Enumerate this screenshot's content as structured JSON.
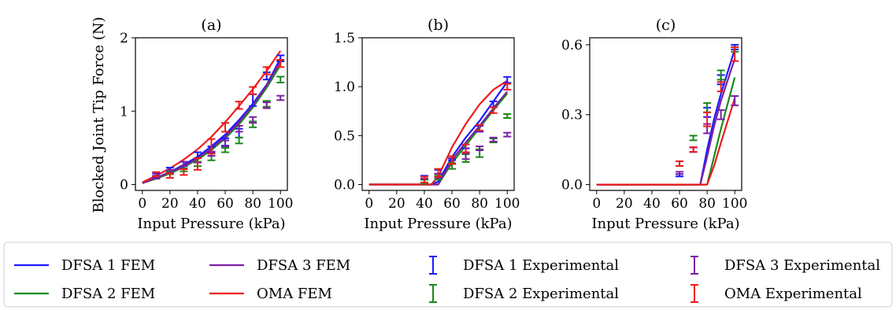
{
  "figure": {
    "ylabel": "Blocked Joint  Tip Force (N)"
  },
  "legend": [
    {
      "label": "DFSA 1 FEM",
      "kind": "line",
      "color": "#1a1aff"
    },
    {
      "label": "DFSA 3 FEM",
      "kind": "line",
      "color": "#7b1fa2"
    },
    {
      "label": "DFSA 1 Experimental",
      "kind": "errorbar",
      "color": "#1a1aff"
    },
    {
      "label": "DFSA 3 Experimental",
      "kind": "errorbar",
      "color": "#7b1fa2"
    },
    {
      "label": "DFSA 2 FEM",
      "kind": "line",
      "color": "#1a8a1a"
    },
    {
      "label": "OMA FEM",
      "kind": "line",
      "color": "#ee1c1c"
    },
    {
      "label": "DFSA 2 Experimental",
      "kind": "errorbar",
      "color": "#1a8a1a"
    },
    {
      "label": "OMA Experimental",
      "kind": "errorbar",
      "color": "#ee1c1c"
    }
  ],
  "chart_data": [
    {
      "type": "line",
      "title": "(a)",
      "xlabel": "Input Pressure (kPa)",
      "ylabel": "Blocked Joint  Tip Force (N)",
      "xlim": [
        -5,
        105
      ],
      "ylim": [
        -0.08,
        2.0
      ],
      "xticks": [
        0,
        20,
        40,
        60,
        80,
        100
      ],
      "yticks": [
        0,
        1,
        2
      ],
      "grid": false,
      "x": [
        0,
        10,
        20,
        30,
        40,
        50,
        60,
        70,
        80,
        90,
        100
      ],
      "series": [
        {
          "name": "DFSA 1 FEM",
          "kind": "fem",
          "color": "#1a1aff",
          "values": [
            0.02,
            0.09,
            0.17,
            0.27,
            0.38,
            0.52,
            0.68,
            0.88,
            1.1,
            1.36,
            1.72
          ]
        },
        {
          "name": "DFSA 2 FEM",
          "kind": "fem",
          "color": "#1a8a1a",
          "values": [
            0.02,
            0.08,
            0.15,
            0.24,
            0.34,
            0.47,
            0.63,
            0.82,
            1.05,
            1.32,
            1.63
          ]
        },
        {
          "name": "DFSA 3 FEM",
          "kind": "fem",
          "color": "#7b1fa2",
          "values": [
            0.02,
            0.09,
            0.16,
            0.25,
            0.36,
            0.49,
            0.65,
            0.85,
            1.08,
            1.35,
            1.68
          ]
        },
        {
          "name": "OMA FEM",
          "kind": "fem",
          "color": "#ee1c1c",
          "values": [
            0.03,
            0.12,
            0.22,
            0.34,
            0.48,
            0.65,
            0.85,
            1.07,
            1.3,
            1.55,
            1.82
          ]
        },
        {
          "name": "DFSA 1 Experimental",
          "kind": "exp",
          "color": "#1a1aff",
          "x": [
            10,
            20,
            30,
            40,
            50,
            60,
            70,
            80,
            90,
            100
          ],
          "values": [
            0.12,
            0.2,
            0.28,
            0.4,
            0.48,
            0.58,
            0.7,
            1.15,
            1.48,
            1.72
          ],
          "errors": [
            0.03,
            0.03,
            0.03,
            0.04,
            0.04,
            0.05,
            0.06,
            0.08,
            0.05,
            0.04
          ]
        },
        {
          "name": "DFSA 2 Experimental",
          "kind": "exp",
          "color": "#1a8a1a",
          "x": [
            10,
            20,
            30,
            40,
            50,
            60,
            70,
            80,
            90,
            100
          ],
          "values": [
            0.1,
            0.16,
            0.2,
            0.28,
            0.36,
            0.47,
            0.6,
            0.82,
            1.1,
            1.43
          ],
          "errors": [
            0.02,
            0.02,
            0.02,
            0.03,
            0.03,
            0.03,
            0.04,
            0.04,
            0.04,
            0.04
          ]
        },
        {
          "name": "DFSA 3 Experimental",
          "kind": "exp",
          "color": "#7b1fa2",
          "x": [
            10,
            20,
            30,
            40,
            50,
            60,
            70,
            80,
            90,
            100
          ],
          "values": [
            0.1,
            0.18,
            0.28,
            0.33,
            0.42,
            0.56,
            0.76,
            0.88,
            1.08,
            1.18
          ],
          "errors": [
            0.02,
            0.02,
            0.03,
            0.03,
            0.03,
            0.04,
            0.04,
            0.04,
            0.04,
            0.03
          ]
        },
        {
          "name": "OMA Experimental",
          "kind": "exp",
          "color": "#ee1c1c",
          "x": [
            10,
            20,
            30,
            40,
            50,
            60,
            70,
            80,
            90,
            100
          ],
          "values": [
            0.14,
            0.12,
            0.17,
            0.28,
            0.52,
            0.78,
            1.08,
            1.28,
            1.55,
            1.65
          ],
          "errors": [
            0.03,
            0.03,
            0.04,
            0.08,
            0.1,
            0.06,
            0.05,
            0.05,
            0.05,
            0.05
          ]
        }
      ]
    },
    {
      "type": "line",
      "title": "(b)",
      "xlabel": "Input Pressure (kPa)",
      "ylabel": "",
      "xlim": [
        -5,
        105
      ],
      "ylim": [
        -0.06,
        1.5
      ],
      "xticks": [
        0,
        20,
        40,
        60,
        80,
        100
      ],
      "yticks": [
        0.0,
        0.5,
        1.0,
        1.5
      ],
      "yticklabels": [
        "0.0",
        "0.5",
        "1.0",
        "1.5"
      ],
      "grid": false,
      "x": [
        0,
        10,
        20,
        30,
        40,
        45,
        50,
        60,
        70,
        80,
        90,
        100
      ],
      "series": [
        {
          "name": "DFSA 1 FEM",
          "kind": "fem",
          "color": "#1a1aff",
          "values": [
            0,
            0,
            0,
            0,
            0,
            0,
            0.03,
            0.28,
            0.48,
            0.65,
            0.85,
            1.05
          ]
        },
        {
          "name": "DFSA 2 FEM",
          "kind": "fem",
          "color": "#1a8a1a",
          "values": [
            0,
            0,
            0,
            0,
            0,
            0,
            0,
            0.22,
            0.4,
            0.58,
            0.76,
            0.93
          ]
        },
        {
          "name": "DFSA 3 FEM",
          "kind": "fem",
          "color": "#7b1fa2",
          "values": [
            0,
            0,
            0,
            0,
            0,
            0,
            0,
            0.25,
            0.43,
            0.6,
            0.78,
            0.95
          ]
        },
        {
          "name": "OMA FEM",
          "kind": "fem",
          "color": "#ee1c1c",
          "values": [
            0,
            0,
            0,
            0,
            0,
            0,
            0.08,
            0.38,
            0.62,
            0.82,
            0.97,
            1.06
          ]
        },
        {
          "name": "DFSA 1 Experimental",
          "kind": "exp",
          "color": "#1a1aff",
          "x": [
            40,
            50,
            60,
            70,
            80,
            90,
            100
          ],
          "values": [
            0.07,
            0.13,
            0.27,
            0.35,
            0.57,
            0.82,
            1.07
          ],
          "errors": [
            0.02,
            0.02,
            0.02,
            0.02,
            0.03,
            0.03,
            0.03
          ]
        },
        {
          "name": "DFSA 2 Experimental",
          "kind": "exp",
          "color": "#1a8a1a",
          "x": [
            40,
            50,
            60,
            70,
            80,
            90,
            100
          ],
          "values": [
            0.03,
            0.07,
            0.19,
            0.27,
            0.32,
            0.45,
            0.7
          ],
          "errors": [
            0.02,
            0.02,
            0.03,
            0.04,
            0.04,
            0.02,
            0.02
          ]
        },
        {
          "name": "DFSA 3 Experimental",
          "kind": "exp",
          "color": "#7b1fa2",
          "x": [
            40,
            50,
            60,
            70,
            80,
            90,
            100
          ],
          "values": [
            0.04,
            0.09,
            0.24,
            0.29,
            0.37,
            0.46,
            0.51
          ],
          "errors": [
            0.02,
            0.02,
            0.03,
            0.03,
            0.02,
            0.02,
            0.02
          ]
        },
        {
          "name": "OMA Experimental",
          "kind": "exp",
          "color": "#ee1c1c",
          "x": [
            40,
            50,
            60,
            70,
            80,
            90,
            100
          ],
          "values": [
            0.05,
            0.12,
            0.25,
            0.37,
            0.58,
            0.76,
            1.0
          ],
          "errors": [
            0.03,
            0.04,
            0.04,
            0.04,
            0.03,
            0.03,
            0.03
          ]
        }
      ]
    },
    {
      "type": "line",
      "title": "(c)",
      "xlabel": "Input Pressure (kPa)",
      "ylabel": "",
      "xlim": [
        -5,
        105
      ],
      "ylim": [
        -0.025,
        0.63
      ],
      "xticks": [
        0,
        20,
        40,
        60,
        80,
        100
      ],
      "yticks": [
        0.0,
        0.3,
        0.6
      ],
      "yticklabels": [
        "0.0",
        "0.3",
        "0.6"
      ],
      "grid": false,
      "x": [
        0,
        10,
        20,
        30,
        40,
        50,
        60,
        70,
        75,
        80,
        85,
        90,
        100
      ],
      "series": [
        {
          "name": "DFSA 1 FEM",
          "kind": "fem",
          "color": "#1a1aff",
          "values": [
            0,
            0,
            0,
            0,
            0,
            0,
            0,
            0,
            0,
            0.15,
            0.28,
            0.39,
            0.58
          ]
        },
        {
          "name": "DFSA 2 FEM",
          "kind": "fem",
          "color": "#1a8a1a",
          "values": [
            0,
            0,
            0,
            0,
            0,
            0,
            0,
            0,
            0,
            0,
            0.12,
            0.24,
            0.46
          ]
        },
        {
          "name": "DFSA 3 FEM",
          "kind": "fem",
          "color": "#7b1fa2",
          "values": [
            0,
            0,
            0,
            0,
            0,
            0,
            0,
            0,
            0,
            0.12,
            0.25,
            0.36,
            0.54
          ]
        },
        {
          "name": "OMA FEM",
          "kind": "fem",
          "color": "#ee1c1c",
          "values": [
            0,
            0,
            0,
            0,
            0,
            0,
            0,
            0,
            0,
            0,
            0.08,
            0.18,
            0.37
          ]
        },
        {
          "name": "DFSA 1 Experimental",
          "kind": "exp",
          "color": "#1a1aff",
          "x": [
            60,
            70,
            80,
            90,
            100
          ],
          "values": [
            0.04,
            0.15,
            0.31,
            0.45,
            0.59
          ],
          "errors": [
            0.005,
            0.01,
            0.02,
            0.02,
            0.01
          ]
        },
        {
          "name": "DFSA 2 Experimental",
          "kind": "exp",
          "color": "#1a8a1a",
          "x": [
            60,
            70,
            80,
            90,
            100
          ],
          "values": [
            0.09,
            0.2,
            0.33,
            0.47,
            0.58
          ],
          "errors": [
            0.01,
            0.01,
            0.02,
            0.02,
            0.01
          ]
        },
        {
          "name": "DFSA 3 Experimental",
          "kind": "exp",
          "color": "#7b1fa2",
          "x": [
            60,
            70,
            80,
            90,
            100
          ],
          "values": [
            0.05,
            0.15,
            0.24,
            0.3,
            0.36
          ],
          "errors": [
            0.005,
            0.01,
            0.02,
            0.02,
            0.02
          ]
        },
        {
          "name": "OMA Experimental",
          "kind": "exp",
          "color": "#ee1c1c",
          "x": [
            60,
            70,
            80,
            90,
            100
          ],
          "values": [
            0.09,
            0.15,
            0.28,
            0.42,
            0.56
          ],
          "errors": [
            0.01,
            0.01,
            0.03,
            0.02,
            0.03
          ]
        }
      ]
    }
  ]
}
